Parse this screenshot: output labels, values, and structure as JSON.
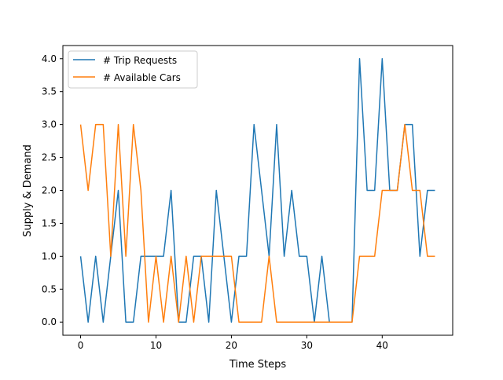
{
  "chart_data": {
    "type": "line",
    "title": "",
    "xlabel": "Time Steps",
    "ylabel": "Supply & Demand",
    "xlim": [
      -2.35,
      49.35
    ],
    "ylim": [
      -0.2,
      4.2
    ],
    "xticks": [
      0,
      10,
      20,
      30,
      40
    ],
    "yticks": [
      0.0,
      0.5,
      1.0,
      1.5,
      2.0,
      2.5,
      3.0,
      3.5,
      4.0
    ],
    "ytick_labels": [
      "0.0",
      "0.5",
      "1.0",
      "1.5",
      "2.0",
      "2.5",
      "3.0",
      "3.5",
      "4.0"
    ],
    "grid": false,
    "legend_position": "upper-left",
    "x": [
      0,
      1,
      2,
      3,
      4,
      5,
      6,
      7,
      8,
      9,
      10,
      11,
      12,
      13,
      14,
      15,
      16,
      17,
      18,
      19,
      20,
      21,
      22,
      23,
      24,
      25,
      26,
      27,
      28,
      29,
      30,
      31,
      32,
      33,
      34,
      35,
      36,
      37,
      38,
      39,
      40,
      41,
      42,
      43,
      44,
      45,
      46,
      47
    ],
    "series": [
      {
        "name": "# Trip Requests",
        "color": "#1f77b4",
        "values": [
          1,
          0,
          1,
          0,
          1,
          2,
          0,
          0,
          1,
          1,
          1,
          1,
          2,
          0,
          0,
          1,
          1,
          0,
          2,
          1,
          0,
          1,
          1,
          3,
          2,
          1,
          3,
          1,
          2,
          1,
          1,
          0,
          1,
          0,
          0,
          0,
          0,
          4,
          2,
          2,
          4,
          2,
          2,
          3,
          3,
          1,
          2,
          2
        ]
      },
      {
        "name": "# Available Cars",
        "color": "#ff7f0e",
        "values": [
          3,
          2,
          3,
          3,
          1,
          3,
          1,
          3,
          2,
          0,
          1,
          0,
          1,
          0,
          1,
          0,
          1,
          1,
          1,
          1,
          1,
          0,
          0,
          0,
          0,
          1,
          0,
          0,
          0,
          0,
          0,
          0,
          0,
          0,
          0,
          0,
          0,
          1,
          1,
          1,
          2,
          2,
          2,
          3,
          2,
          2,
          1,
          1
        ]
      }
    ]
  }
}
